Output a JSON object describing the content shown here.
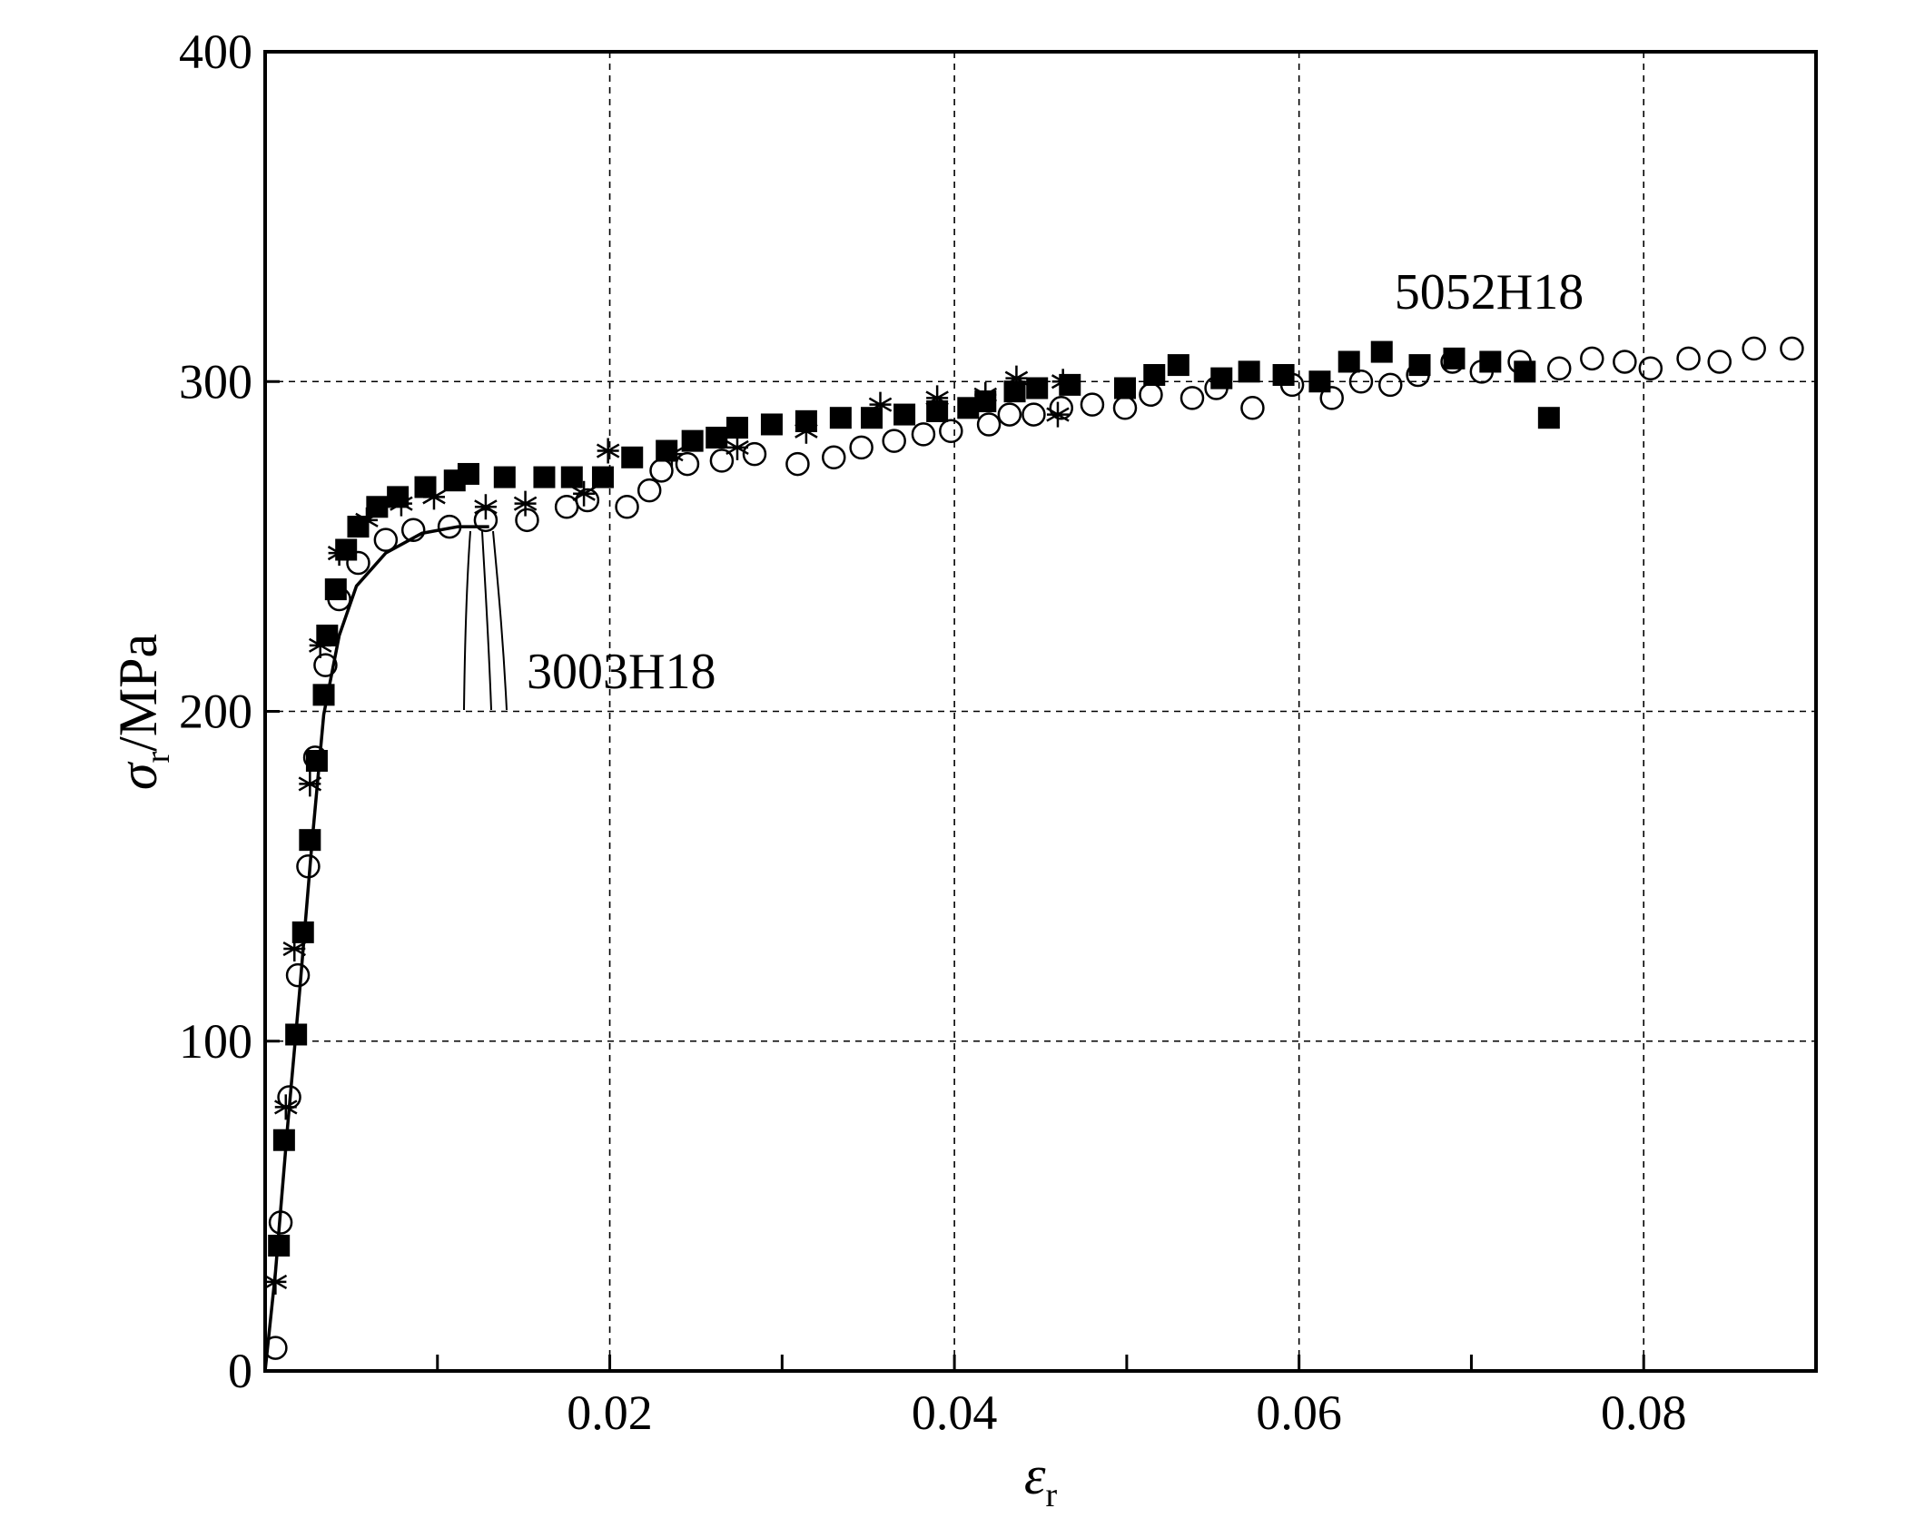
{
  "chart_data": {
    "type": "scatter",
    "xlabel": {
      "symbol": "ε",
      "subscript": "r"
    },
    "ylabel": {
      "symbol": "σ",
      "subscript": "r",
      "unit": "/MPa"
    },
    "xlim": [
      0,
      0.09
    ],
    "ylim": [
      0,
      400
    ],
    "xticks": [
      0.02,
      0.04,
      0.06,
      0.08
    ],
    "xminorticks": [
      0.01,
      0.03,
      0.05,
      0.07
    ],
    "yticks": [
      0,
      100,
      200,
      300,
      400
    ],
    "grid": true,
    "annotations": [
      "5052H18",
      "3003H18"
    ],
    "series": [
      {
        "marker": "square-filled",
        "color": "#000000",
        "x": [
          0.0008,
          0.0011,
          0.0018,
          0.0022,
          0.0026,
          0.003,
          0.0034,
          0.0036,
          0.0041,
          0.0047,
          0.0054,
          0.0065,
          0.0077,
          0.0093,
          0.011,
          0.0118,
          0.0139,
          0.0162,
          0.0178,
          0.0196,
          0.0213,
          0.0233,
          0.0248,
          0.0262,
          0.0274,
          0.0294,
          0.0314,
          0.0334,
          0.0352,
          0.0371,
          0.039,
          0.0408,
          0.0418,
          0.0435,
          0.0448,
          0.0467,
          0.0499,
          0.0516,
          0.053,
          0.0555,
          0.0571,
          0.0591,
          0.0612,
          0.0629,
          0.0648,
          0.067,
          0.069,
          0.0711,
          0.0731,
          0.0745
        ],
        "values": [
          38,
          70,
          102,
          133,
          161,
          185,
          205,
          223,
          237,
          249,
          256,
          262,
          265,
          268,
          270,
          272,
          271,
          271,
          271,
          271,
          277,
          279,
          282,
          283,
          286,
          287,
          288,
          289,
          289,
          290,
          291,
          292,
          294,
          297,
          298,
          299,
          298,
          302,
          305,
          301,
          303,
          302,
          300,
          306,
          309,
          305,
          307,
          306,
          303,
          289
        ]
      },
      {
        "marker": "circle-open",
        "color": "#000000",
        "x": [
          0.0006,
          0.0009,
          0.0014,
          0.0019,
          0.0025,
          0.0029,
          0.0035,
          0.0043,
          0.0054,
          0.007,
          0.0086,
          0.0107,
          0.0128,
          0.0152,
          0.0175,
          0.0187,
          0.021,
          0.0223,
          0.023,
          0.0245,
          0.0265,
          0.0284,
          0.0309,
          0.033,
          0.0346,
          0.0365,
          0.0382,
          0.0398,
          0.042,
          0.0432,
          0.0446,
          0.0462,
          0.048,
          0.0499,
          0.0514,
          0.0538,
          0.0552,
          0.0573,
          0.0596,
          0.0619,
          0.0636,
          0.0653,
          0.0669,
          0.0689,
          0.0706,
          0.0728,
          0.0751,
          0.077,
          0.0789,
          0.0804,
          0.0826,
          0.0844,
          0.0864,
          0.0886
        ],
        "values": [
          7,
          45,
          83,
          120,
          153,
          186,
          214,
          234,
          245,
          252,
          255,
          256,
          258,
          258,
          262,
          264,
          262,
          267,
          273,
          275,
          276,
          278,
          275,
          277,
          280,
          282,
          284,
          285,
          287,
          290,
          290,
          292,
          293,
          292,
          296,
          295,
          298,
          292,
          299,
          295,
          300,
          299,
          302,
          306,
          303,
          306,
          304,
          307,
          306,
          304,
          307,
          306,
          310,
          310
        ]
      },
      {
        "marker": "asterisk",
        "color": "#000000",
        "x": [
          0.0006,
          0.0012,
          0.0017,
          0.0026,
          0.0032,
          0.0043,
          0.0059,
          0.0079,
          0.0098,
          0.0128,
          0.0151,
          0.0185,
          0.0199,
          0.0236,
          0.0274,
          0.0314,
          0.0357,
          0.039,
          0.0418,
          0.0436,
          0.046,
          0.0463
        ],
        "values": [
          27,
          80,
          128,
          178,
          220,
          248,
          258,
          263,
          265,
          262,
          263,
          266,
          279,
          278,
          280,
          285,
          293,
          295,
          296,
          301,
          290,
          300
        ]
      },
      {
        "marker": "line",
        "color": "#000000",
        "x": [
          0,
          0.0006,
          0.0013,
          0.002,
          0.0027,
          0.0034,
          0.0043,
          0.0053,
          0.007,
          0.0091,
          0.0112,
          0.013
        ],
        "values": [
          0,
          30,
          74,
          115,
          159,
          199,
          223,
          238,
          248,
          254,
          256,
          256
        ]
      }
    ]
  }
}
